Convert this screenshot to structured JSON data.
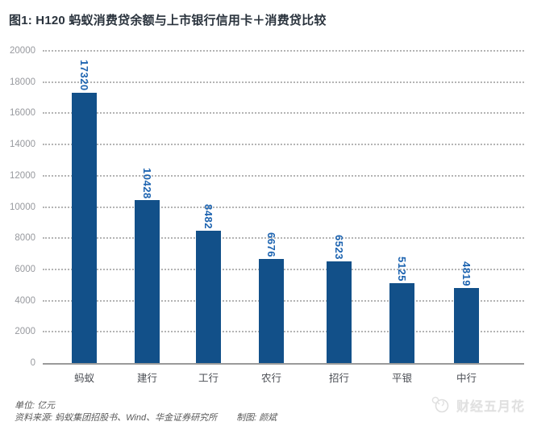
{
  "title": "图1: H120 蚂蚁消费贷余额与上市银行信用卡＋消费贷比较",
  "chart_data": {
    "type": "bar",
    "title": "图1: H120 蚂蚁消费贷余额与上市银行信用卡＋消费贷比较",
    "categories": [
      "蚂蚁",
      "建行",
      "工行",
      "农行",
      "招行",
      "平银",
      "中行"
    ],
    "values": [
      17320,
      10428,
      8482,
      6676,
      6523,
      5125,
      4819
    ],
    "value_labels": [
      "17320",
      "10428",
      "8482",
      "6676",
      "6523",
      "5125",
      "4819"
    ],
    "unit": "亿元",
    "xlabel": "",
    "ylabel": "",
    "ylim": [
      0,
      20000
    ],
    "ytick_step": 2000,
    "grid": "horizontal-dotted",
    "legend_position": "none",
    "value_label_rotation": "vertical",
    "colors": {
      "bar": "#125089",
      "value_label": "#1c63b0",
      "grid": "#b4b4b4",
      "axis": "#9a9a9a",
      "tick_label": "#97999e",
      "category_label": "#4b4e54",
      "title": "#2a333d"
    }
  },
  "footer": {
    "unit_label": "单位: 亿元",
    "source": "资料来源: 蚂蚁集团招股书、Wind、华金证券研究所",
    "credit": "制图: 颜斌"
  },
  "watermark": {
    "icon": "flower-icon",
    "text": "财经五月花"
  }
}
